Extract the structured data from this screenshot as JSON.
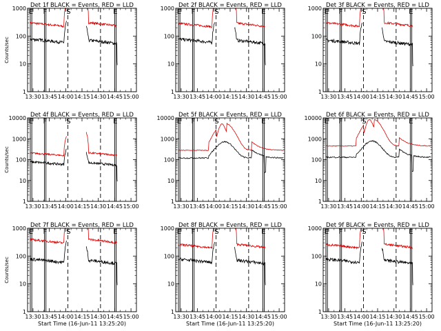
{
  "colors": {
    "events": "#000000",
    "lld": "#e00000",
    "axes": "#000000"
  },
  "chart_data": [
    {
      "type": "line",
      "title": "Det 1f BLACK = Events, RED = LLD",
      "xlabel": "",
      "ylabel": "Counts/sec",
      "scale_y": "log",
      "ylim": [
        1,
        1000
      ],
      "lld_level": 230,
      "ev_level": 60,
      "flare": false
    },
    {
      "type": "line",
      "title": "Det 2f BLACK = Events, RED = LLD",
      "xlabel": "",
      "ylabel": "",
      "scale_y": "log",
      "ylim": [
        1,
        1000
      ],
      "lld_level": 220,
      "ev_level": 60,
      "flare": false
    },
    {
      "type": "line",
      "title": "Det 3f BLACK = Events, RED = LLD",
      "xlabel": "",
      "ylabel": "",
      "scale_y": "log",
      "ylim": [
        1,
        1000
      ],
      "lld_level": 230,
      "ev_level": 55,
      "flare": false
    },
    {
      "type": "line",
      "title": "Det 4f BLACK = Events, RED = LLD",
      "xlabel": "",
      "ylabel": "Counts/sec",
      "scale_y": "log",
      "ylim": [
        1,
        10000
      ],
      "lld_level": 160,
      "ev_level": 60,
      "flare": false
    },
    {
      "type": "line",
      "title": "Det 5f BLACK = Events, RED = LLD",
      "xlabel": "",
      "ylabel": "",
      "scale_y": "log",
      "ylim": [
        1,
        10000
      ],
      "lld_level": 280,
      "ev_level": 120,
      "flare": true
    },
    {
      "type": "line",
      "title": "Det 6f BLACK = Events, RED = LLD",
      "xlabel": "",
      "ylabel": "",
      "scale_y": "log",
      "ylim": [
        1,
        10000
      ],
      "lld_level": 450,
      "ev_level": 130,
      "flare": true
    },
    {
      "type": "line",
      "title": "Det 7f BLACK = Events, RED = LLD",
      "xlabel": "Start Time (16-Jun-11 13:25:20)",
      "ylabel": "Counts/sec",
      "scale_y": "log",
      "ylim": [
        1,
        1000
      ],
      "lld_level": 300,
      "ev_level": 60,
      "flare": false
    },
    {
      "type": "line",
      "title": "Det 8f BLACK = Events, RED = LLD",
      "xlabel": "Start Time (16-Jun-11 13:25:20)",
      "ylabel": "",
      "scale_y": "log",
      "ylim": [
        1,
        1000
      ],
      "lld_level": 200,
      "ev_level": 60,
      "flare": false
    },
    {
      "type": "line",
      "title": "Det 9f BLACK = Events, RED = LLD",
      "xlabel": "Start Time (16-Jun-11 13:25:20)",
      "ylabel": "",
      "scale_y": "log",
      "ylim": [
        1,
        1000
      ],
      "lld_level": 200,
      "ev_level": 60,
      "flare": false
    }
  ],
  "x_ticks": [
    "13:30",
    "13:45",
    "14:00",
    "14:15",
    "14:30",
    "14:45",
    "15:00"
  ],
  "x_tick_minutes": [
    30,
    45,
    60,
    75,
    90,
    105,
    120
  ],
  "x_range_minutes": [
    25,
    125
  ],
  "markers": [
    {
      "label": "E",
      "minute": 27.5,
      "style": "solid"
    },
    {
      "label": "F",
      "minute": 40.5,
      "style": "solid"
    },
    {
      "label": "S",
      "minute": 62,
      "style": "dashed"
    },
    {
      "label": "",
      "minute": 92,
      "style": "dashed"
    },
    {
      "label": "E",
      "minute": 105,
      "style": "solid"
    }
  ]
}
